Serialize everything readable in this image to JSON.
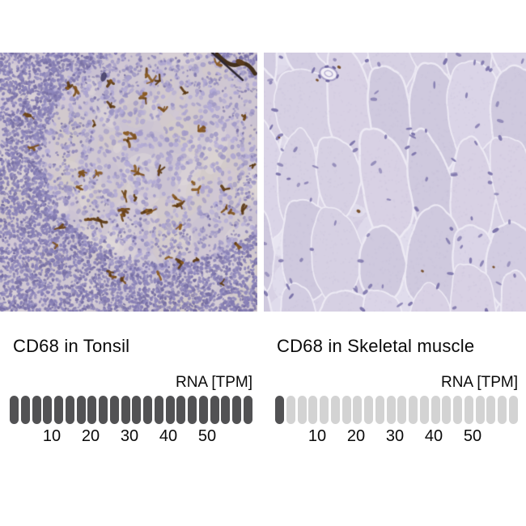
{
  "figure": {
    "background": "#ffffff",
    "panels": [
      {
        "id": "tonsil",
        "title": "CD68 in Tonsil",
        "rna_label": "RNA [TPM]",
        "bar": {
          "segments": 22,
          "filled": 22,
          "ticks": [
            "10",
            "20",
            "30",
            "40",
            "50"
          ],
          "filled_color": "#525254",
          "empty_color": "#d3d3d3"
        },
        "stain_palette": {
          "background": "#cfc7d2",
          "nuclei_light": [
            "#aba3d0",
            "#a29ac8",
            "#b3abd6",
            "#9992c2"
          ],
          "nuclei_dense": [
            "#837bb1",
            "#8a82b7",
            "#766ea3",
            "#9089bd"
          ],
          "dab_brown": [
            "#6d4419",
            "#7e511f",
            "#8c5d26",
            "#5c3a14"
          ]
        }
      },
      {
        "id": "skeletal-muscle",
        "title": "CD68 in Skeletal muscle",
        "rna_label": "RNA [TPM]",
        "bar": {
          "segments": 22,
          "filled": 1,
          "ticks": [
            "10",
            "20",
            "30",
            "40",
            "50"
          ],
          "filled_color": "#525254",
          "empty_color": "#d3d3d3"
        },
        "stain_palette": {
          "background": "#d8d2e5",
          "fiber_fills": [
            "#d6d0e3",
            "#d2cce1",
            "#dad4e7",
            "#cfc9de",
            "#d8d1e4"
          ],
          "fiber_border": "#edeaf4",
          "nuclei": "#7b73aa",
          "dab_brown": "#6f451b"
        }
      }
    ]
  },
  "chart_data": [
    {
      "type": "bar",
      "title": "CD68 in Tonsil",
      "unit_label": "RNA [TPM]",
      "axis_ticks": [
        10,
        20,
        30,
        40,
        50
      ],
      "segments_total": 22,
      "segments_filled": 22,
      "reading": "bar completely filled (high expression, beyond 50 TPM scale)"
    },
    {
      "type": "bar",
      "title": "CD68 in Skeletal muscle",
      "unit_label": "RNA [TPM]",
      "axis_ticks": [
        10,
        20,
        30,
        40,
        50
      ],
      "segments_total": 22,
      "segments_filled": 1,
      "reading": "only first segment filled (very low expression)"
    }
  ]
}
